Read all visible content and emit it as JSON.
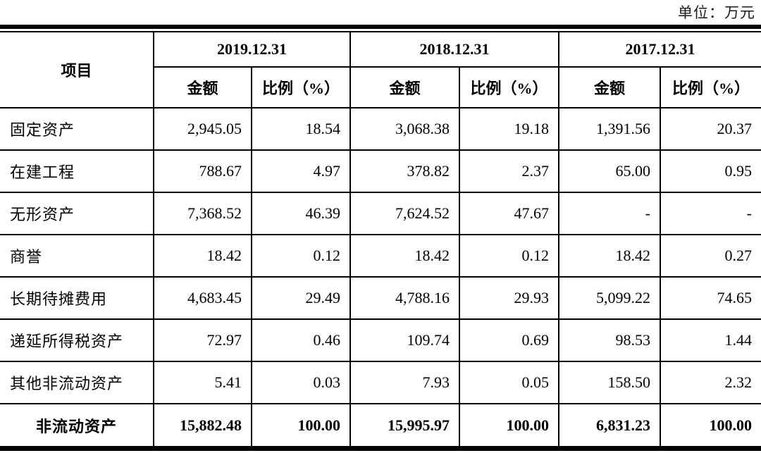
{
  "unit_label": "单位：万元",
  "table": {
    "item_header": "项目",
    "periods": [
      "2019.12.31",
      "2018.12.31",
      "2017.12.31"
    ],
    "sub_headers": {
      "amount": "金额",
      "ratio": "比例（%）"
    },
    "rows": [
      {
        "label": "固定资产",
        "values": [
          "2,945.05",
          "18.54",
          "3,068.38",
          "19.18",
          "1,391.56",
          "20.37"
        ]
      },
      {
        "label": "在建工程",
        "values": [
          "788.67",
          "4.97",
          "378.82",
          "2.37",
          "65.00",
          "0.95"
        ]
      },
      {
        "label": "无形资产",
        "values": [
          "7,368.52",
          "46.39",
          "7,624.52",
          "47.67",
          "-",
          "-"
        ]
      },
      {
        "label": "商誉",
        "values": [
          "18.42",
          "0.12",
          "18.42",
          "0.12",
          "18.42",
          "0.27"
        ]
      },
      {
        "label": "长期待摊费用",
        "values": [
          "4,683.45",
          "29.49",
          "4,788.16",
          "29.93",
          "5,099.22",
          "74.65"
        ]
      },
      {
        "label": "递延所得税资产",
        "values": [
          "72.97",
          "0.46",
          "109.74",
          "0.69",
          "98.53",
          "1.44"
        ]
      },
      {
        "label": "其他非流动资产",
        "values": [
          "5.41",
          "0.03",
          "7.93",
          "0.05",
          "158.50",
          "2.32"
        ]
      },
      {
        "label": "非流动资产",
        "values": [
          "15,882.48",
          "100.00",
          "15,995.97",
          "100.00",
          "6,831.23",
          "100.00"
        ]
      }
    ]
  }
}
